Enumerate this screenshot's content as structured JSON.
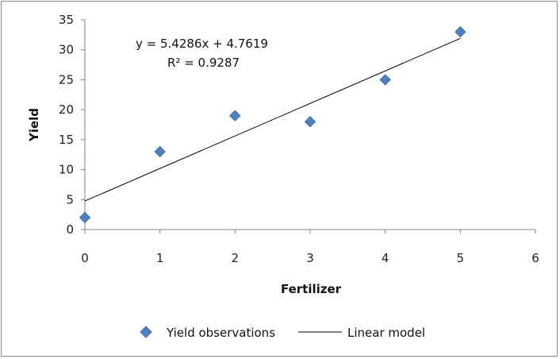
{
  "chart_data": {
    "type": "scatter",
    "xlabel": "Fertilizer",
    "ylabel": "Yield",
    "xlim": [
      0,
      6
    ],
    "ylim": [
      0,
      35
    ],
    "xticks": [
      0,
      1,
      2,
      3,
      4,
      5,
      6
    ],
    "yticks": [
      0,
      5,
      10,
      15,
      20,
      25,
      30,
      35
    ],
    "grid": false,
    "legend_position": "bottom",
    "series": [
      {
        "name": "Yield observations",
        "kind": "points",
        "marker": "diamond",
        "color": "#4f81bd",
        "x": [
          0,
          1,
          2,
          3,
          4,
          5
        ],
        "y": [
          2,
          13,
          19,
          18,
          25,
          33
        ]
      },
      {
        "name": "Linear model",
        "kind": "line",
        "color": "#000000",
        "x": [
          0,
          5
        ],
        "y": [
          4.7619,
          31.9049
        ]
      }
    ],
    "annotations": {
      "equation": "y = 5.4286x + 4.7619",
      "r2_label": "R² = 0.9287"
    }
  }
}
